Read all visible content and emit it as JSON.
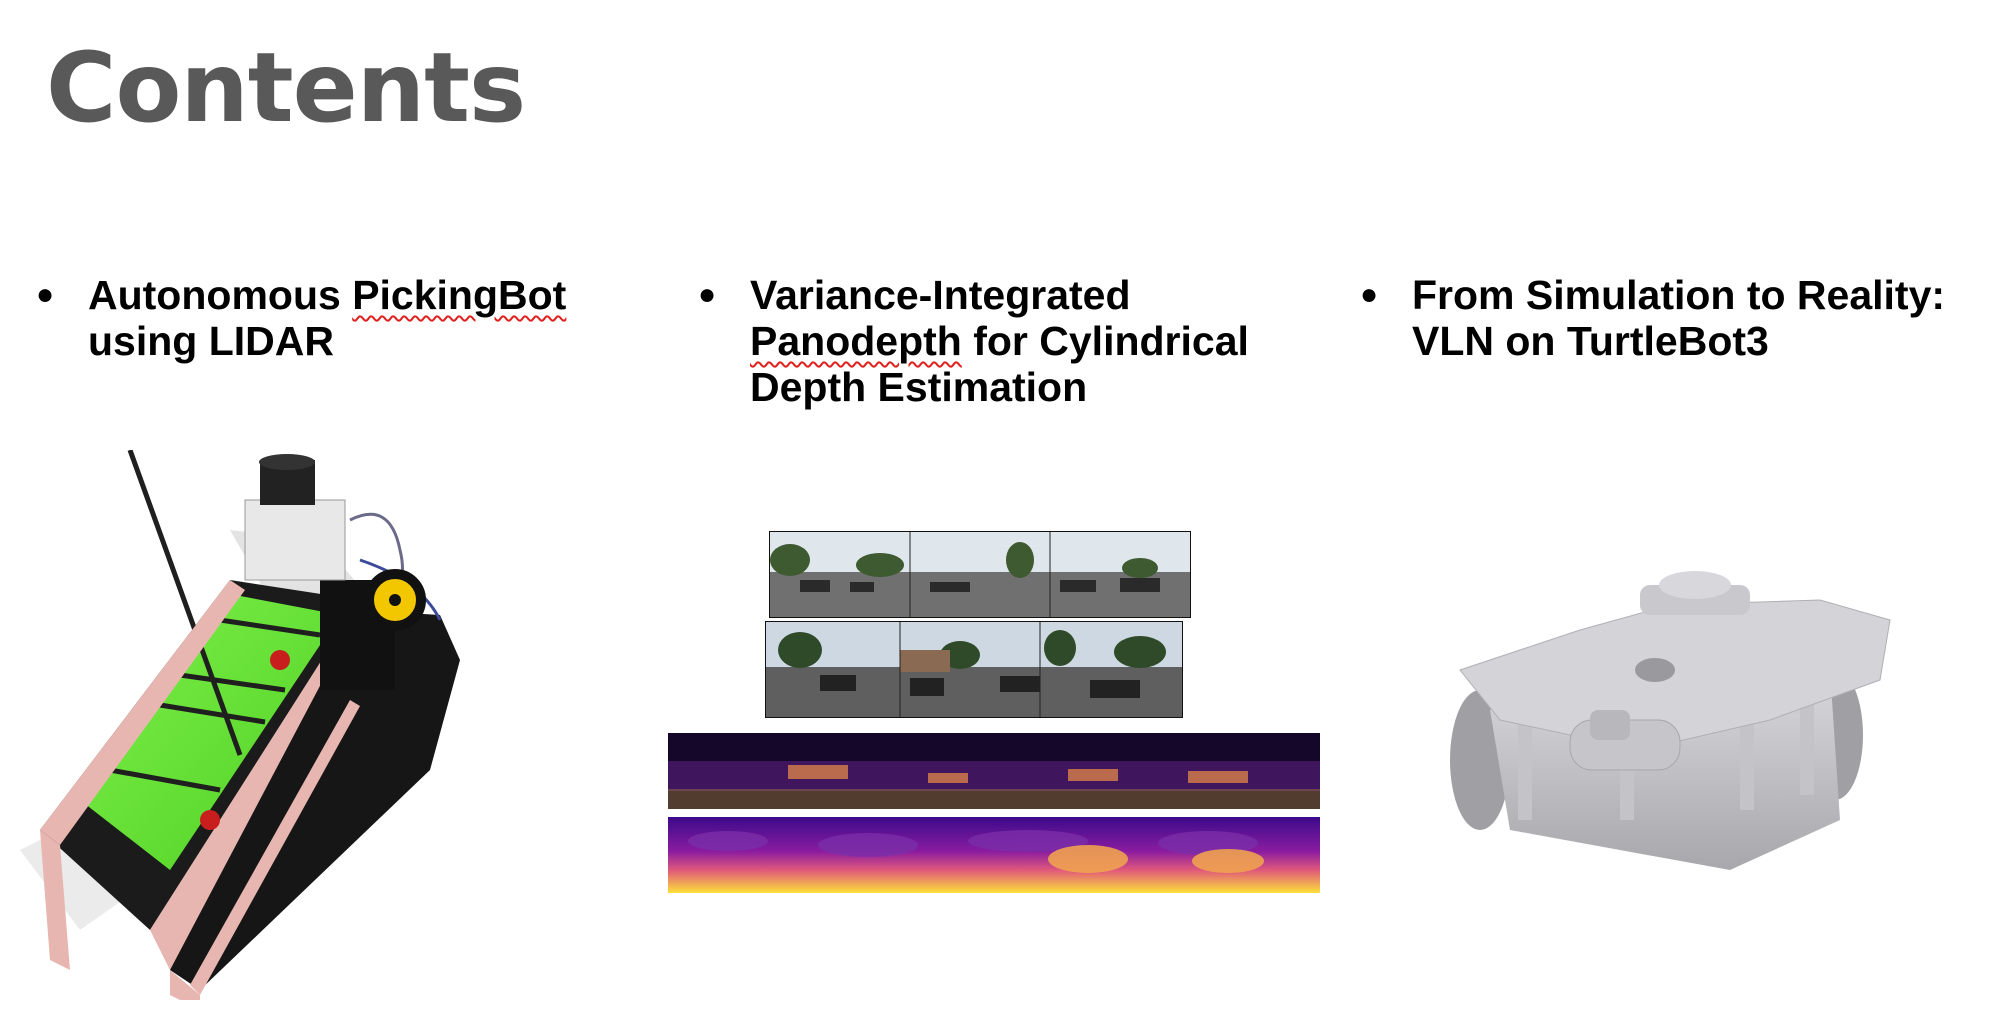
{
  "slide": {
    "title": "Contents",
    "items": [
      {
        "bullet": "●",
        "line1_pre": "Autonomous ",
        "line1_err": "PickingBot",
        "line2": "using LIDAR"
      },
      {
        "bullet": "●",
        "line1": "Variance-Integrated",
        "line2_err": "Panodepth",
        "line2_post": " for Cylindrical",
        "line3": "Depth Estimation"
      },
      {
        "bullet": "●",
        "line1": "From Simulation to Reality:",
        "line2": "VLN on TurtleBot3"
      }
    ]
  },
  "colors": {
    "title": "#595959",
    "text": "#000000",
    "spellcheck": "#e0201c"
  },
  "icons": [
    "pickingbot-robot-photo",
    "panorama-photo-strips",
    "depth-map-strips",
    "turtlebot3-3d-model"
  ]
}
